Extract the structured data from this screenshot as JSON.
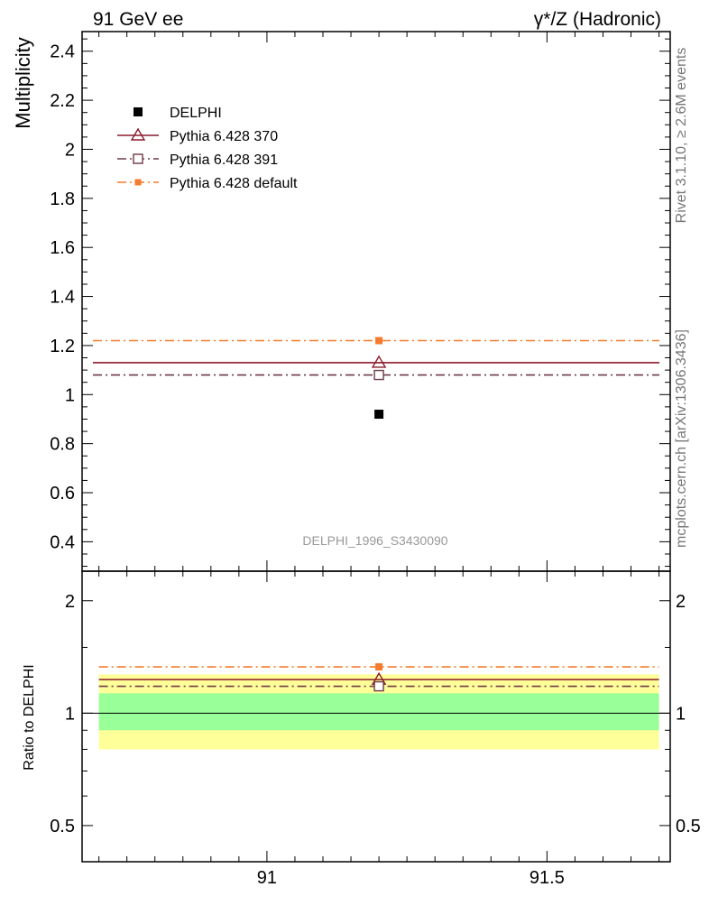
{
  "header": {
    "left": "91 GeV ee",
    "right": "γ*/Z (Hadronic)"
  },
  "side_labels": {
    "rivet": "Rivet 3.1.10, ≥ 2.6M events",
    "mcplots": "mcplots.cern.ch [arXiv:1306.3436]"
  },
  "analysis_id": "DELPHI_1996_S3430090",
  "chart_data": [
    {
      "type": "scatter",
      "ylabel": "Multiplicity",
      "xlim": [
        90.67,
        91.72
      ],
      "ylim": [
        0.28,
        2.48
      ],
      "yticks": [
        "0.4",
        "0.6",
        "0.8",
        "1",
        "1.2",
        "1.4",
        "1.6",
        "1.8",
        "2",
        "2.2",
        "2.4"
      ],
      "legend_position": "top-left",
      "series": [
        {
          "name": "DELPHI",
          "x": [
            91.2
          ],
          "y": [
            0.92
          ],
          "marker": "filled-square",
          "color": "#000000"
        },
        {
          "name": "Pythia 6.428 370",
          "x": [
            91.2
          ],
          "y": [
            1.13
          ],
          "marker": "open-triangle",
          "line": "solid",
          "color": "#8b1a2a"
        },
        {
          "name": "Pythia 6.428 391",
          "x": [
            91.2
          ],
          "y": [
            1.08
          ],
          "marker": "open-square",
          "line": "dash-dot",
          "color": "#6e3a48"
        },
        {
          "name": "Pythia 6.428 default",
          "x": [
            91.2
          ],
          "y": [
            1.22
          ],
          "marker": "filled-square",
          "line": "dash-dot",
          "color": "#f57b2d"
        }
      ]
    },
    {
      "type": "scatter",
      "ylabel": "Ratio to DELPHI",
      "xlim": [
        90.67,
        91.72
      ],
      "ylim": [
        0.4,
        2.4
      ],
      "yscale": "log",
      "xticks": [
        "91",
        "91.5"
      ],
      "yticks": [
        "0.5",
        "1",
        "2"
      ],
      "bands": [
        {
          "name": "outer",
          "low": 0.8,
          "high": 1.27,
          "color": "#ffff99"
        },
        {
          "name": "inner",
          "low": 0.9,
          "high": 1.13,
          "color": "#99ff99"
        }
      ],
      "series": [
        {
          "name": "Pythia 6.428 370",
          "x": [
            91.2
          ],
          "y": [
            1.23
          ],
          "color": "#8b1a2a"
        },
        {
          "name": "Pythia 6.428 391",
          "x": [
            91.2
          ],
          "y": [
            1.18
          ],
          "color": "#6e3a48"
        },
        {
          "name": "Pythia 6.428 default",
          "x": [
            91.2
          ],
          "y": [
            1.33
          ],
          "color": "#f57b2d"
        }
      ]
    }
  ]
}
